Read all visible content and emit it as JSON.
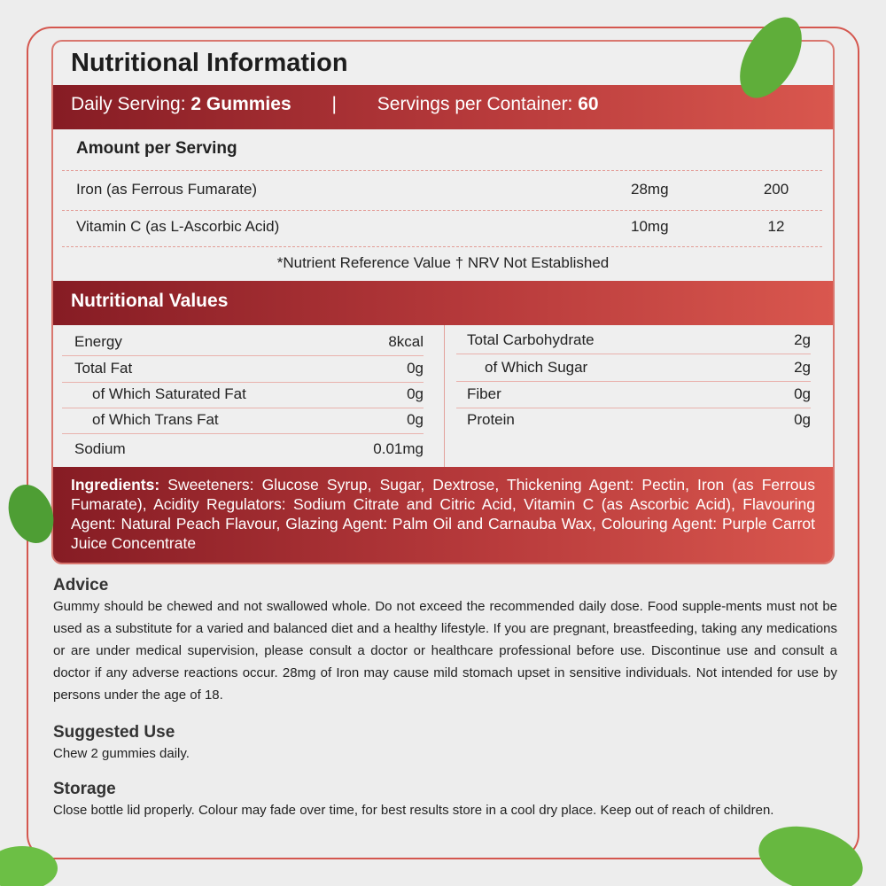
{
  "title": "Nutritional Information",
  "header": {
    "serving_label": "Daily Serving:",
    "serving_value": "2 Gummies",
    "separator": "|",
    "container_label": "Servings per Container:",
    "container_value": "60"
  },
  "amount_heading": "Amount per Serving",
  "nutrients": [
    {
      "name": "Iron (as Ferrous Fumarate)",
      "amount": "28mg",
      "nrv": "200"
    },
    {
      "name": "Vitamin C (as L-Ascorbic Acid)",
      "amount": "10mg",
      "nrv": "12"
    }
  ],
  "nrv_note": "*Nutrient Reference Value † NRV Not Established",
  "values_heading": "Nutritional Values",
  "values_left": [
    {
      "name": "Energy",
      "value": "8kcal"
    },
    {
      "name": "Total Fat",
      "value": "0g"
    },
    {
      "name": "of Which Saturated Fat",
      "value": "0g"
    },
    {
      "name": "of Which Trans Fat",
      "value": "0g"
    },
    {
      "name": "Sodium",
      "value": "0.01mg"
    }
  ],
  "values_right": [
    {
      "name": "Total Carbohydrate",
      "value": "2g"
    },
    {
      "name": "of Which Sugar",
      "value": "2g"
    },
    {
      "name": "Fiber",
      "value": "0g"
    },
    {
      "name": "Protein",
      "value": "0g"
    }
  ],
  "ingredients": {
    "label": "Ingredients:",
    "text": " Sweeteners: Glucose Syrup, Sugar, Dextrose, Thickening Agent: Pectin, Iron (as Ferrous Fumarate),  Acidity Regulators: Sodium Citrate and Citric Acid, Vitamin C (as Ascorbic Acid), Flavouring Agent: Natural Peach Flavour, Glazing Agent: Palm Oil and Carnauba Wax, Colouring Agent: Purple Carrot Juice Concentrate"
  },
  "advice": {
    "heading": "Advice",
    "text": "Gummy should be chewed and not swallowed whole. Do not exceed the recommended daily dose. Food supple-ments must not be used as a substitute for a varied and balanced diet and a healthy lifestyle. If you are pregnant, breastfeeding, taking any medications or are under medical supervision, please consult a doctor or healthcare professional before use. Discontinue use and consult a doctor if any adverse reactions occur. 28mg of Iron may cause mild stomach upset in sensitive individuals. Not intended for use by persons under the age of 18."
  },
  "suggested_use": {
    "heading": "Suggested Use",
    "text": "Chew 2 gummies daily."
  },
  "storage": {
    "heading": "Storage",
    "text": "Close bottle lid properly. Colour may fade over time, for best results store in a cool dry place. Keep out of reach of children."
  },
  "colors": {
    "accent_dark": "#861c24",
    "accent_light": "#d9574e",
    "leaf": "#5fae3a"
  }
}
